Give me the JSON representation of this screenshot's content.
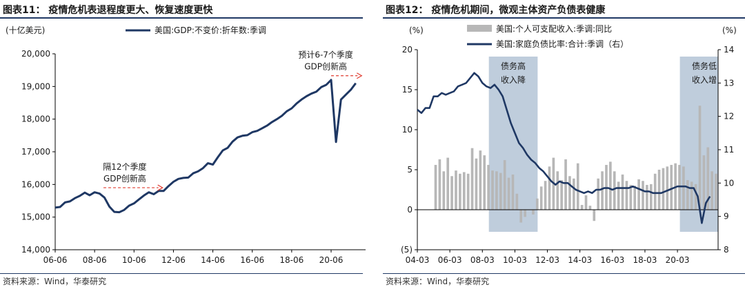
{
  "source_label": "资料来源：Wind，华泰研究",
  "chart_data": [
    {
      "id": "left",
      "figure_title": "图表11：  疫情危机表退程度更大、恢复速度更快",
      "type": "line",
      "unit_label": "(十亿美元)",
      "legend_entries": [
        "美国:GDP:不变价:折年数:季调"
      ],
      "ylim": [
        14000,
        20000
      ],
      "y_ticks": [
        "14,000",
        "15,000",
        "16,000",
        "17,000",
        "18,000",
        "19,000",
        "20,000"
      ],
      "x_ticks": [
        "06-06",
        "08-06",
        "10-06",
        "12-06",
        "14-06",
        "16-06",
        "18-06",
        "20-06"
      ],
      "grid": false,
      "annotations": [
        {
          "text_lines": [
            "隔12个季度",
            "GDP创新高"
          ],
          "arrow_from_x": 2008.45,
          "arrow_to_x": 2011.45,
          "arrow_y": 15900
        },
        {
          "text_lines": [
            "预计6-7个季度",
            "GDP创新高"
          ],
          "arrow_from_x": 2020.0,
          "arrow_to_x": 2021.55,
          "arrow_y": 19330
        }
      ],
      "series": [
        {
          "name": "美国:GDP:不变价:折年数:季调",
          "color": "#1f3864",
          "x": [
            2006.0,
            2006.25,
            2006.5,
            2006.75,
            2007.0,
            2007.25,
            2007.5,
            2007.75,
            2008.0,
            2008.25,
            2008.5,
            2008.75,
            2009.0,
            2009.25,
            2009.5,
            2009.75,
            2010.0,
            2010.25,
            2010.5,
            2010.75,
            2011.0,
            2011.25,
            2011.5,
            2011.75,
            2012.0,
            2012.25,
            2012.5,
            2012.75,
            2013.0,
            2013.25,
            2013.5,
            2013.75,
            2014.0,
            2014.25,
            2014.5,
            2014.75,
            2015.0,
            2015.25,
            2015.5,
            2015.75,
            2016.0,
            2016.25,
            2016.5,
            2016.75,
            2017.0,
            2017.25,
            2017.5,
            2017.75,
            2018.0,
            2018.25,
            2018.5,
            2018.75,
            2019.0,
            2019.25,
            2019.5,
            2019.75,
            2020.0,
            2020.25,
            2020.5,
            2020.75,
            2021.0,
            2021.25
          ],
          "values": [
            15290,
            15310,
            15450,
            15480,
            15580,
            15650,
            15750,
            15670,
            15760,
            15720,
            15600,
            15320,
            15160,
            15150,
            15220,
            15350,
            15420,
            15540,
            15660,
            15760,
            15700,
            15800,
            15800,
            15950,
            16080,
            16170,
            16200,
            16210,
            16340,
            16400,
            16500,
            16650,
            16610,
            16830,
            17040,
            17120,
            17310,
            17440,
            17490,
            17510,
            17600,
            17640,
            17720,
            17800,
            17910,
            18000,
            18100,
            18240,
            18330,
            18480,
            18600,
            18700,
            18780,
            18840,
            18980,
            19050,
            19200,
            17300,
            18600,
            18750,
            18900,
            19100
          ]
        }
      ]
    },
    {
      "id": "right",
      "figure_title": "图表12：  疫情危机期间，微观主体资产负债表健康",
      "type": "bar+line",
      "left_unit_label": "(%)",
      "right_unit_label": "(%)",
      "legend_entries": [
        "美国:个人可支配收入:季调:同比",
        "美国:家庭负债比率:合计:季调（右）"
      ],
      "ylim_left": [
        -5,
        20
      ],
      "ylim_right": [
        8,
        14
      ],
      "y_ticks_left": [
        "(5)",
        "0",
        "5",
        "10",
        "15",
        "20"
      ],
      "y_ticks_right": [
        "8",
        "9",
        "10",
        "11",
        "12",
        "13",
        "14"
      ],
      "x_ticks": [
        "04-03",
        "06-03",
        "08-03",
        "10-03",
        "12-03",
        "14-03",
        "16-03",
        "18-03",
        "20-03"
      ],
      "grid": false,
      "shaded_periods": [
        {
          "x_start": 2007.4,
          "x_end": 2010.4,
          "label_lines": [
            "债务高",
            "收入降"
          ]
        },
        {
          "x_start": 2019.15,
          "x_end": 2021.5,
          "label_lines": [
            "债务低",
            "收入增"
          ]
        }
      ],
      "series": [
        {
          "name": "美国:个人可支配收入:季调:同比",
          "kind": "bar",
          "axis": "left",
          "color": "#b7b7b7",
          "x": [
            2004.0,
            2004.25,
            2004.5,
            2004.75,
            2005.0,
            2005.25,
            2005.5,
            2005.75,
            2006.0,
            2006.25,
            2006.5,
            2006.75,
            2007.0,
            2007.25,
            2007.5,
            2007.75,
            2008.0,
            2008.25,
            2008.5,
            2008.75,
            2009.0,
            2009.25,
            2009.5,
            2009.75,
            2010.0,
            2010.25,
            2010.5,
            2010.75,
            2011.0,
            2011.25,
            2011.5,
            2011.75,
            2012.0,
            2012.25,
            2012.5,
            2012.75,
            2013.0,
            2013.25,
            2013.5,
            2013.75,
            2014.0,
            2014.25,
            2014.5,
            2014.75,
            2015.0,
            2015.25,
            2015.5,
            2015.75,
            2016.0,
            2016.25,
            2016.5,
            2016.75,
            2017.0,
            2017.25,
            2017.5,
            2017.75,
            2018.0,
            2018.25,
            2018.5,
            2018.75,
            2019.0,
            2019.25,
            2019.5,
            2019.75,
            2020.0,
            2020.25,
            2020.5,
            2020.75,
            2021.0,
            2021.25
          ],
          "values": [
            5.6,
            6.3,
            4.8,
            6.5,
            4.2,
            4.9,
            4.5,
            4.7,
            4.5,
            7.7,
            6.4,
            7.4,
            6.8,
            5.6,
            4.9,
            4.8,
            4.6,
            6.2,
            4.0,
            4.4,
            2.0,
            -1.6,
            -0.9,
            0.0,
            -0.6,
            1.4,
            2.9,
            3.6,
            5.4,
            6.5,
            4.8,
            3.7,
            6.3,
            4.2,
            3.9,
            5.8,
            0.6,
            1.8,
            0.5,
            -1.4,
            3.9,
            4.8,
            5.6,
            6.0,
            4.8,
            3.5,
            4.4,
            3.6,
            3.1,
            3.0,
            3.8,
            3.6,
            3.1,
            3.2,
            4.5,
            5.0,
            5.2,
            5.4,
            5.6,
            5.8,
            5.6,
            5.4,
            3.7,
            3.5,
            3.2,
            13.0,
            6.8,
            7.8,
            4.8,
            4.5
          ]
        },
        {
          "name": "美国:家庭负债比率:合计:季调（右）",
          "kind": "line",
          "axis": "right",
          "color": "#1f3864",
          "x": [
            2003.0,
            2003.25,
            2003.5,
            2003.75,
            2004.0,
            2004.25,
            2004.5,
            2004.75,
            2005.0,
            2005.25,
            2005.5,
            2005.75,
            2006.0,
            2006.25,
            2006.5,
            2006.75,
            2007.0,
            2007.25,
            2007.5,
            2007.75,
            2008.0,
            2008.25,
            2008.5,
            2008.75,
            2009.0,
            2009.25,
            2009.5,
            2009.75,
            2010.0,
            2010.25,
            2010.5,
            2010.75,
            2011.0,
            2011.25,
            2011.5,
            2011.75,
            2012.0,
            2012.25,
            2012.5,
            2012.75,
            2013.0,
            2013.25,
            2013.5,
            2013.75,
            2014.0,
            2014.25,
            2014.5,
            2014.75,
            2015.0,
            2015.25,
            2015.5,
            2015.75,
            2016.0,
            2016.25,
            2016.5,
            2016.75,
            2017.0,
            2017.25,
            2017.5,
            2017.75,
            2018.0,
            2018.25,
            2018.5,
            2018.75,
            2019.0,
            2019.25,
            2019.5,
            2019.75,
            2020.0,
            2020.25,
            2020.5,
            2020.75,
            2021.0
          ],
          "values": [
            12.2,
            12.1,
            12.25,
            12.25,
            12.6,
            12.6,
            12.7,
            12.65,
            12.7,
            12.75,
            12.9,
            12.95,
            13.0,
            13.15,
            13.3,
            13.2,
            13.0,
            12.9,
            12.85,
            12.95,
            12.8,
            12.6,
            12.2,
            11.8,
            11.5,
            11.2,
            11.05,
            10.85,
            10.7,
            10.6,
            10.45,
            10.35,
            10.2,
            10.05,
            9.95,
            10.05,
            10.0,
            10.0,
            9.9,
            9.8,
            9.75,
            9.7,
            9.75,
            9.7,
            9.8,
            9.8,
            9.85,
            9.85,
            9.8,
            9.85,
            9.85,
            9.85,
            9.85,
            9.9,
            9.85,
            9.8,
            9.75,
            9.75,
            9.7,
            9.7,
            9.7,
            9.75,
            9.8,
            9.85,
            9.9,
            9.9,
            9.9,
            9.85,
            9.85,
            9.6,
            8.8,
            9.4,
            9.6
          ]
        }
      ]
    }
  ]
}
